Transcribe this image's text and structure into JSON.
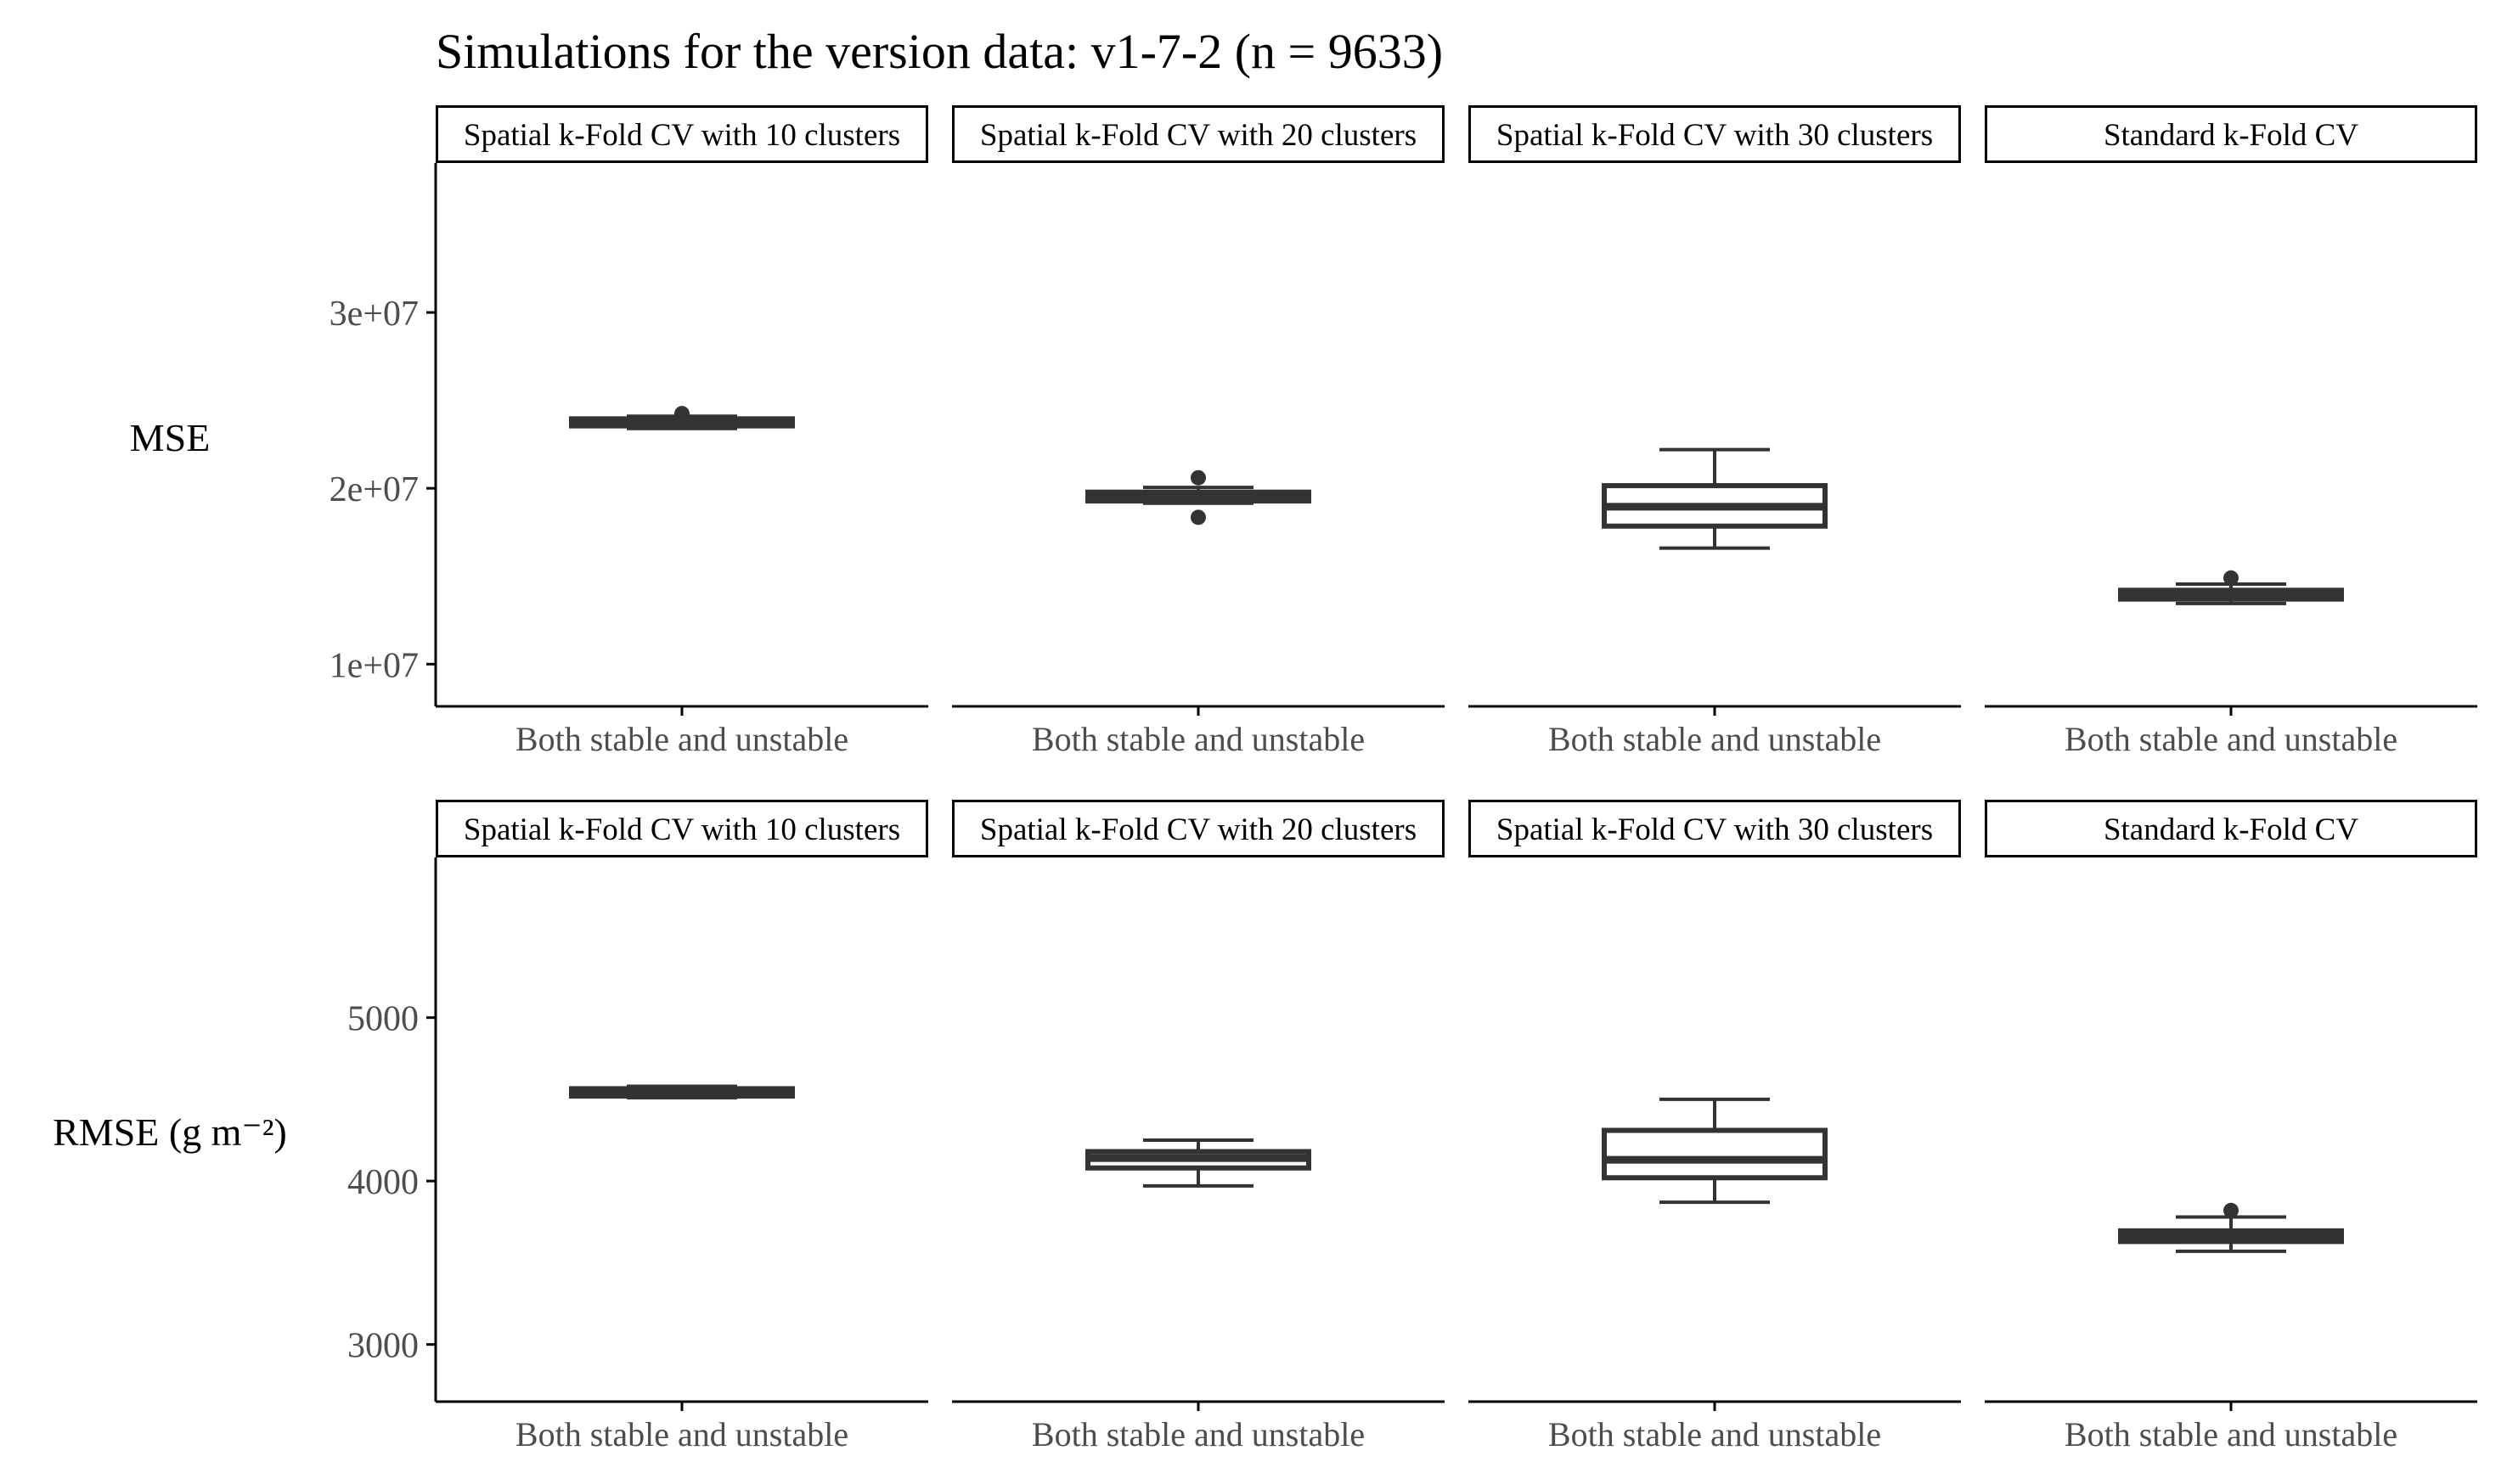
{
  "title": "Simulations for the version data: v1-7-2 (n = 9633)",
  "colors": {
    "ink": "#000000",
    "box": "#333333",
    "tick_text": "#4d4d4d",
    "background": "#ffffff"
  },
  "chart_data": [
    {
      "type": "boxplot",
      "row_label": "MSE",
      "y_tick_labels": [
        "1e+07",
        "2e+07",
        "3e+07"
      ],
      "y_ticks": [
        10000000,
        20000000,
        30000000
      ],
      "ylim": [
        7600000,
        38500000
      ],
      "x_category": "Both stable and unstable",
      "panels": [
        {
          "strip": "Spatial k-Fold CV with 10 clusters",
          "whisker_low": 23400000,
          "q1": 23550000,
          "median": 23750000,
          "q3": 23950000,
          "whisker_high": 24100000,
          "outliers": [
            24250000
          ]
        },
        {
          "strip": "Spatial k-Fold CV with 20 clusters",
          "whisker_low": 19150000,
          "q1": 19280000,
          "median": 19500000,
          "q3": 19780000,
          "whisker_high": 20050000,
          "outliers": [
            20600000,
            18350000
          ]
        },
        {
          "strip": "Spatial k-Fold CV with 30 clusters",
          "whisker_low": 16600000,
          "q1": 17850000,
          "median": 18950000,
          "q3": 20150000,
          "whisker_high": 22200000,
          "outliers": []
        },
        {
          "strip": "Standard k-Fold CV",
          "whisker_low": 13450000,
          "q1": 13700000,
          "median": 13950000,
          "q3": 14200000,
          "whisker_high": 14550000,
          "outliers": [
            14900000
          ]
        }
      ]
    },
    {
      "type": "boxplot",
      "row_label": "RMSE (g m⁻²)",
      "y_tick_labels": [
        "3000",
        "4000",
        "5000"
      ],
      "y_ticks": [
        3000,
        4000,
        5000
      ],
      "ylim": [
        2650,
        5980
      ],
      "x_category": "Both stable and unstable",
      "panels": [
        {
          "strip": "Spatial k-Fold CV with 10 clusters",
          "whisker_low": 4510,
          "q1": 4520,
          "median": 4545,
          "q3": 4565,
          "whisker_high": 4580,
          "outliers": []
        },
        {
          "strip": "Spatial k-Fold CV with 20 clusters",
          "whisker_low": 3970,
          "q1": 4080,
          "median": 4140,
          "q3": 4180,
          "whisker_high": 4250,
          "outliers": []
        },
        {
          "strip": "Spatial k-Fold CV with 30 clusters",
          "whisker_low": 3870,
          "q1": 4020,
          "median": 4130,
          "q3": 4310,
          "whisker_high": 4500,
          "outliers": []
        },
        {
          "strip": "Standard k-Fold CV",
          "whisker_low": 3570,
          "q1": 3630,
          "median": 3660,
          "q3": 3695,
          "whisker_high": 3780,
          "outliers": [
            3820
          ]
        }
      ]
    }
  ]
}
